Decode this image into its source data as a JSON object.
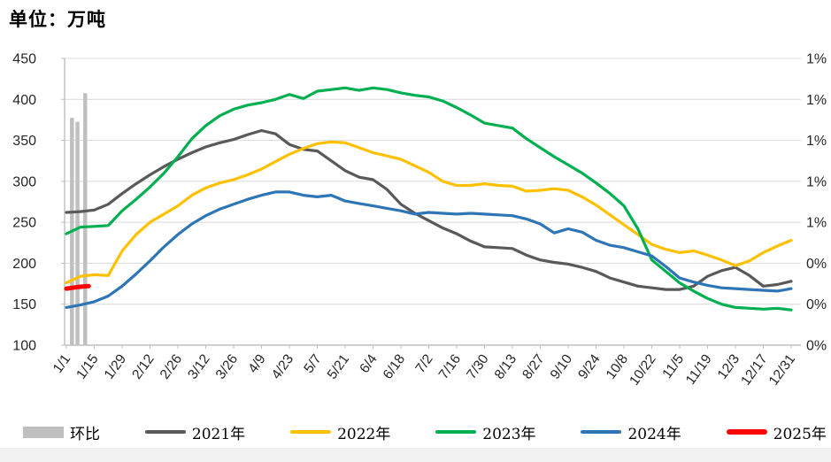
{
  "title_unit": "单位：万吨",
  "colors": {
    "gridline": "#d9d9d9",
    "axis": "#bfbfbf",
    "tick_text": "#262626",
    "bar": "#bfbfbf",
    "y2021": "#595959",
    "y2022": "#ffc000",
    "y2023": "#00b050",
    "y2024": "#2e75b6",
    "y2025": "#ff0000"
  },
  "chart_data": {
    "type": "line",
    "title": "单位：万吨",
    "x_tick_labels": [
      "1/1",
      "1/15",
      "1/29",
      "2/12",
      "2/26",
      "3/12",
      "3/26",
      "4/9",
      "4/23",
      "5/7",
      "5/21",
      "6/4",
      "6/18",
      "7/2",
      "7/16",
      "7/30",
      "8/13",
      "8/27",
      "9/10",
      "9/24",
      "10/8",
      "10/22",
      "11/5",
      "11/19",
      "12/3",
      "12/17",
      "12/31"
    ],
    "x_dates_weekly": [
      "1/1",
      "1/8",
      "1/15",
      "1/22",
      "1/29",
      "2/5",
      "2/12",
      "2/19",
      "2/26",
      "3/5",
      "3/12",
      "3/19",
      "3/26",
      "4/2",
      "4/9",
      "4/16",
      "4/23",
      "4/30",
      "5/7",
      "5/14",
      "5/21",
      "5/28",
      "6/4",
      "6/11",
      "6/18",
      "6/25",
      "7/2",
      "7/9",
      "7/16",
      "7/23",
      "7/30",
      "8/6",
      "8/13",
      "8/20",
      "8/27",
      "9/3",
      "9/10",
      "9/17",
      "9/24",
      "10/1",
      "10/8",
      "10/15",
      "10/22",
      "10/29",
      "11/5",
      "11/12",
      "11/19",
      "11/26",
      "12/3",
      "12/10",
      "12/17",
      "12/24",
      "12/31"
    ],
    "y_axis_left": {
      "min": 100,
      "max": 450,
      "step": 50,
      "tick_labels": [
        "450",
        "400",
        "350",
        "300",
        "250",
        "200",
        "150",
        "100"
      ]
    },
    "y_axis_right": {
      "tick_labels_top_to_bottom": [
        "1%",
        "1%",
        "1%",
        "1%",
        "1%",
        "0%",
        "0%",
        "0%"
      ],
      "range_pct": [
        0,
        1.4
      ],
      "format": "percent rounded to integer"
    },
    "grid": "horizontal",
    "legend_position": "bottom",
    "bars": {
      "name": "环比",
      "axis": "right",
      "points": [
        {
          "week_pos": 0.4,
          "pct": 1.11
        },
        {
          "week_pos": 0.8,
          "pct": 1.09
        },
        {
          "week_pos": 1.35,
          "pct": 1.23
        }
      ]
    },
    "series": [
      {
        "name": "2021年",
        "color_key": "y2021",
        "width": 3.2,
        "values": [
          262,
          263,
          265,
          272,
          285,
          297,
          308,
          318,
          327,
          335,
          342,
          347,
          351,
          357,
          362,
          358,
          345,
          339,
          337,
          325,
          313,
          305,
          302,
          290,
          272,
          261,
          252,
          243,
          236,
          227,
          220,
          219,
          218,
          210,
          204,
          201,
          199,
          195,
          190,
          182,
          177,
          172,
          170,
          168,
          168,
          172,
          184,
          191,
          195,
          185,
          172,
          174,
          178
        ]
      },
      {
        "name": "2022年",
        "color_key": "y2022",
        "width": 3.2,
        "values": [
          176,
          184,
          186,
          185,
          215,
          235,
          250,
          260,
          270,
          283,
          292,
          298,
          302,
          308,
          315,
          324,
          333,
          340,
          346,
          348,
          347,
          341,
          335,
          331,
          327,
          319,
          311,
          300,
          295,
          295,
          297,
          295,
          294,
          288,
          289,
          291,
          289,
          281,
          271,
          259,
          247,
          235,
          223,
          217,
          213,
          215,
          210,
          204,
          197,
          203,
          213,
          221,
          228
        ]
      },
      {
        "name": "2023年",
        "color_key": "y2023",
        "width": 3.2,
        "values": [
          236,
          244,
          245,
          246,
          264,
          278,
          293,
          310,
          330,
          352,
          368,
          380,
          388,
          393,
          396,
          400,
          406,
          401,
          410,
          412,
          414,
          411,
          414,
          412,
          408,
          405,
          403,
          398,
          390,
          381,
          371,
          368,
          365,
          352,
          341,
          330,
          320,
          310,
          298,
          285,
          270,
          242,
          204,
          190,
          176,
          166,
          157,
          150,
          146,
          145,
          144,
          145,
          143
        ]
      },
      {
        "name": "2024年",
        "color_key": "y2024",
        "width": 3.2,
        "values": [
          146,
          149,
          153,
          160,
          172,
          187,
          203,
          220,
          235,
          248,
          258,
          266,
          272,
          278,
          283,
          287,
          287,
          283,
          281,
          283,
          276,
          273,
          270,
          267,
          264,
          260,
          262,
          261,
          260,
          261,
          260,
          259,
          258,
          254,
          248,
          237,
          242,
          238,
          228,
          222,
          219,
          214,
          209,
          196,
          182,
          177,
          173,
          170,
          169,
          168,
          167,
          166,
          169
        ]
      },
      {
        "name": "2025年",
        "color_key": "y2025",
        "width": 5,
        "week_positions": [
          0,
          0.8,
          1.6
        ],
        "values": [
          169,
          171,
          172
        ]
      }
    ]
  }
}
